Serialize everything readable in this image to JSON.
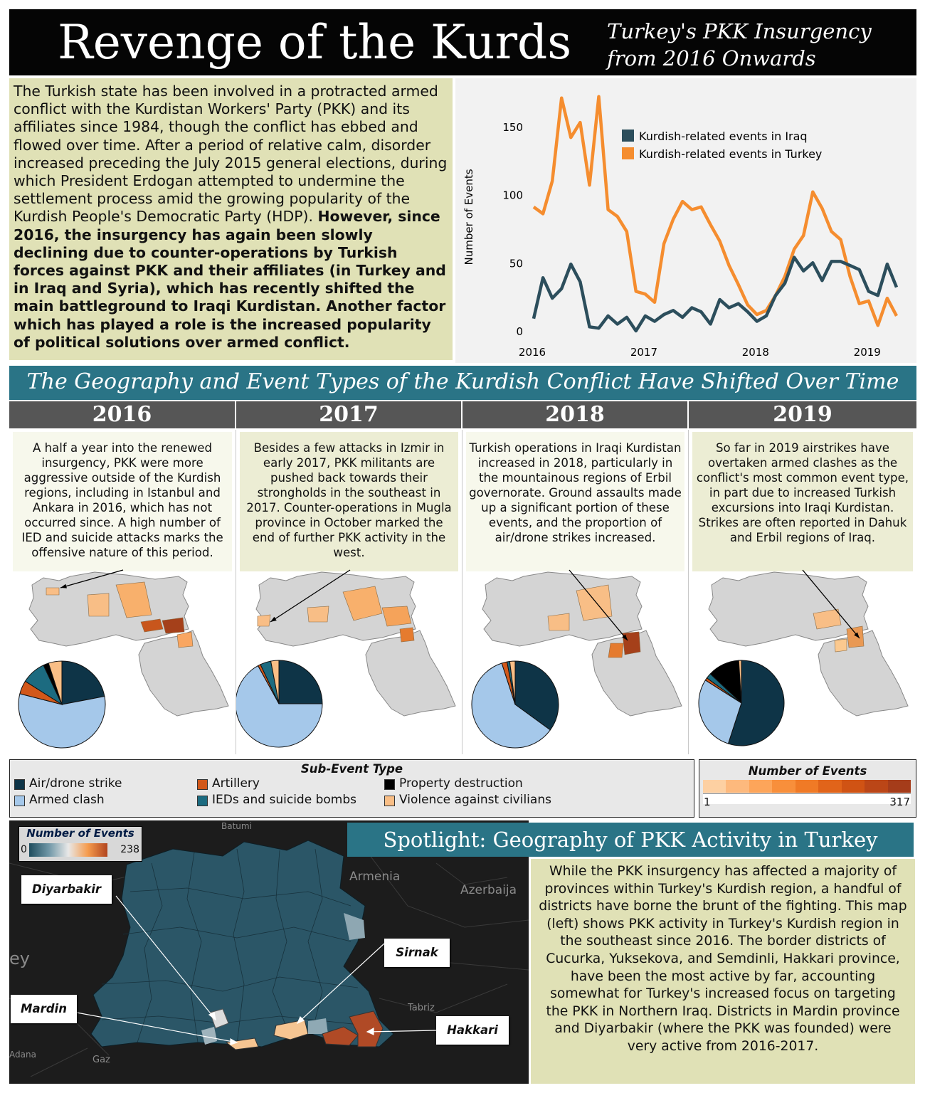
{
  "header": {
    "title": "Revenge of the Kurds",
    "subtitle": "Turkey's PKK Insurgency from 2016 Onwards"
  },
  "intro": {
    "plain": "The Turkish state has been involved in a protracted armed conflict with the Kurdistan Workers' Party (PKK) and its affiliates since 1984, though the conflict has ebbed and flowed over time. After a period of relative calm, disorder increased preceding the July 2015 general elections, during which President Erdogan attempted to undermine the settlement process amid the growing popularity of the Kurdish People's Democratic Party (HDP). ",
    "bold": "However, since 2016, the insurgency has again been slowly declining due to counter-operations by Turkish forces against PKK and their affiliates (in Turkey and in Iraq and Syria), which has recently shifted the main battleground to Iraqi Kurdistan. Another factor which has played a role is the increased popularity of political solutions over armed conflict."
  },
  "banner": {
    "text": "The Geography and Event Types of the Kurdish Conflict Have Shifted Over Time"
  },
  "years": [
    {
      "year": "2016",
      "text": "A half a year into the renewed insurgency, PKK were more aggressive outside of the Kurdish regions, including in Istanbul and Ankara in 2016, which has not occurred since. A high number of IED and suicide attacks marks the offensive nature of this period."
    },
    {
      "year": "2017",
      "text": "Besides a few attacks in Izmir in early 2017, PKK militants are pushed back towards their strongholds in the southeast in 2017. Counter-operations in Mugla province in October marked the end of further PKK activity in the west."
    },
    {
      "year": "2018",
      "text": "Turkish operations in Iraqi Kurdistan increased in 2018, particularly in the mountainous regions of Erbil governorate. Ground assaults made up a significant portion of these events, and the proportion of air/drone strikes increased."
    },
    {
      "year": "2019",
      "text": "So far in 2019 airstrikes have overtaken armed clashes as the conflict's most common event type, in part due to increased Turkish excursions into Iraqi Kurdistan. Strikes are often reported in Dahuk and Erbil regions of Iraq."
    }
  ],
  "legend_sub": {
    "title": "Sub-Event Type",
    "items": [
      {
        "label": "Air/drone strike",
        "color": "#0e3447"
      },
      {
        "label": "Armed clash",
        "color": "#a5c8ea"
      },
      {
        "label": "Artillery",
        "color": "#d2581a"
      },
      {
        "label": "IEDs and suicide bombs",
        "color": "#1c6b80"
      },
      {
        "label": "Property destruction",
        "color": "#000000"
      },
      {
        "label": "Violence against civilians",
        "color": "#f9be86"
      }
    ]
  },
  "legend_num": {
    "title": "Number of Events",
    "min": "1",
    "max": "317"
  },
  "spotlight": {
    "title": "Spotlight: Geography of PKK Activity in Turkey",
    "text": "While the PKK insurgency has affected a majority of provinces within Turkey's Kurdish region, a handful of districts have borne the brunt of the fighting. This map (left) shows PKK activity in Turkey's Kurdish region in the southeast since 2016. The border districts of Cucurka, Yuksekova, and Semdinli, Hakkari province, have been the most active by far, accounting somewhat for Turkey's increased focus on targeting the PKK in Northern Iraq.  Districts in Mardin province and Diyarbakir (where the PKK was founded) were very active from 2016-2017.",
    "legend_title": "Number of Events",
    "legend_min": "0",
    "legend_max": "238",
    "callouts": [
      "Diyarbakir",
      "Sirnak",
      "Mardin",
      "Hakkari"
    ],
    "map_labels": [
      "Batumi",
      "Armenia",
      "Azerbaija",
      "ey",
      "Tabriz",
      "Adana",
      "Gaz"
    ]
  },
  "chart_data": [
    {
      "type": "line",
      "title": "",
      "xlabel": "",
      "ylabel": "Number of Events",
      "x_ticks": [
        "2016",
        "2017",
        "2018",
        "2019"
      ],
      "y_ticks": [
        0,
        50,
        100,
        150
      ],
      "ylim": [
        0,
        175
      ],
      "x_start": 2016.0,
      "x_step_months": 1,
      "series": [
        {
          "name": "Kurdish-related events in Iraq",
          "color": "#2c4e5c",
          "values": [
            9,
            39,
            24,
            31,
            49,
            36,
            3,
            2,
            11,
            5,
            10,
            0,
            11,
            7,
            12,
            15,
            10,
            17,
            14,
            5,
            23,
            17,
            20,
            14,
            7,
            11,
            26,
            35,
            54,
            44,
            50,
            37,
            51,
            51,
            48,
            45,
            29,
            26,
            49,
            32
          ]
        },
        {
          "name": "Kurdish-related events in Turkey",
          "color": "#f58d2f",
          "values": [
            91,
            86,
            110,
            171,
            142,
            153,
            107,
            172,
            89,
            84,
            73,
            29,
            27,
            21,
            64,
            82,
            95,
            89,
            91,
            78,
            66,
            48,
            34,
            19,
            12,
            15,
            26,
            40,
            60,
            70,
            102,
            90,
            73,
            67,
            40,
            20,
            22,
            4,
            24,
            11
          ]
        }
      ]
    },
    {
      "type": "pie",
      "title": "2016",
      "categories": [
        "Air/drone strike",
        "Armed clash",
        "Artillery",
        "IEDs and suicide bombs",
        "Property destruction",
        "Violence against civilians"
      ],
      "values": [
        22,
        57,
        5,
        9,
        2,
        5
      ]
    },
    {
      "type": "pie",
      "title": "2017",
      "categories": [
        "Air/drone strike",
        "Armed clash",
        "Artillery",
        "IEDs and suicide bombs",
        "Property destruction",
        "Violence against civilians"
      ],
      "values": [
        25,
        67,
        1,
        4,
        0,
        3
      ]
    },
    {
      "type": "pie",
      "title": "2018",
      "categories": [
        "Air/drone strike",
        "Armed clash",
        "Artillery",
        "IEDs and suicide bombs",
        "Property destruction",
        "Violence against civilians"
      ],
      "values": [
        35,
        60,
        2,
        1,
        0,
        2
      ]
    },
    {
      "type": "pie",
      "title": "2019",
      "categories": [
        "Air/drone strike",
        "Armed clash",
        "Artillery",
        "IEDs and suicide bombs",
        "Property destruction",
        "Violence against civilians"
      ],
      "values": [
        55,
        29,
        1,
        2,
        12,
        1
      ]
    }
  ]
}
